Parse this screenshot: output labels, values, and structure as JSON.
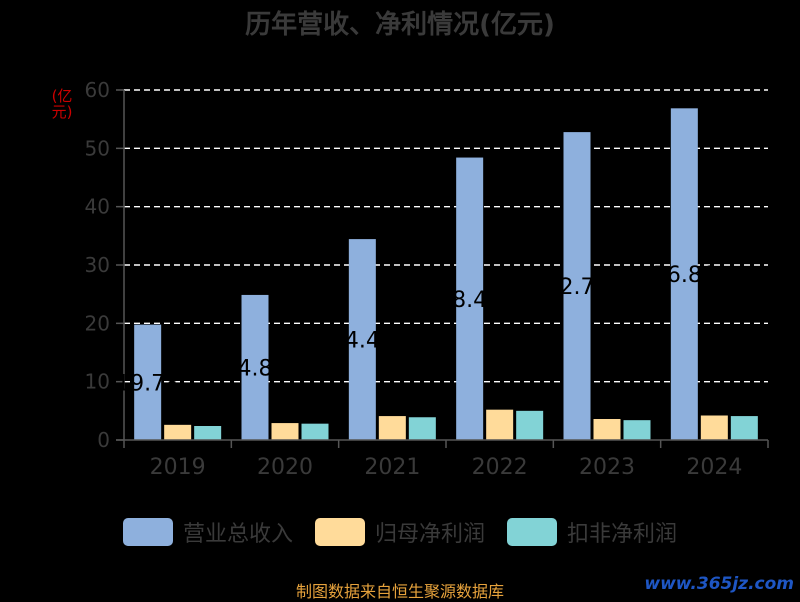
{
  "chart_data": {
    "type": "bar",
    "title": "历年营收、净利情况(亿元)",
    "ylabel": "(亿元)",
    "categories": [
      "2019",
      "2020",
      "2021",
      "2022",
      "2023",
      "2024"
    ],
    "ylim": [
      0,
      60
    ],
    "yticks": [
      "0",
      "10",
      "20",
      "30",
      "40",
      "50",
      "60"
    ],
    "grid": true,
    "legend_position": "bottom",
    "series": [
      {
        "name": "营业总收入",
        "color": "#8eb0dd",
        "values": [
          19.78,
          24.87,
          34.44,
          48.42,
          52.78,
          56.86
        ],
        "labels": [
          "19.78",
          "24.87",
          "34.44",
          "48.42",
          "52.78",
          "56.86"
        ]
      },
      {
        "name": "归母净利润",
        "color": "#ffdb9a",
        "values": [
          2.6,
          2.9,
          4.1,
          5.2,
          3.6,
          4.2
        ]
      },
      {
        "name": "扣非净利润",
        "color": "#82d3d6",
        "values": [
          2.4,
          2.8,
          3.9,
          5.0,
          3.4,
          4.1
        ]
      }
    ]
  },
  "footer": {
    "source": "制图数据来自恒生聚源数据库",
    "watermark": "www.365jz.com"
  }
}
